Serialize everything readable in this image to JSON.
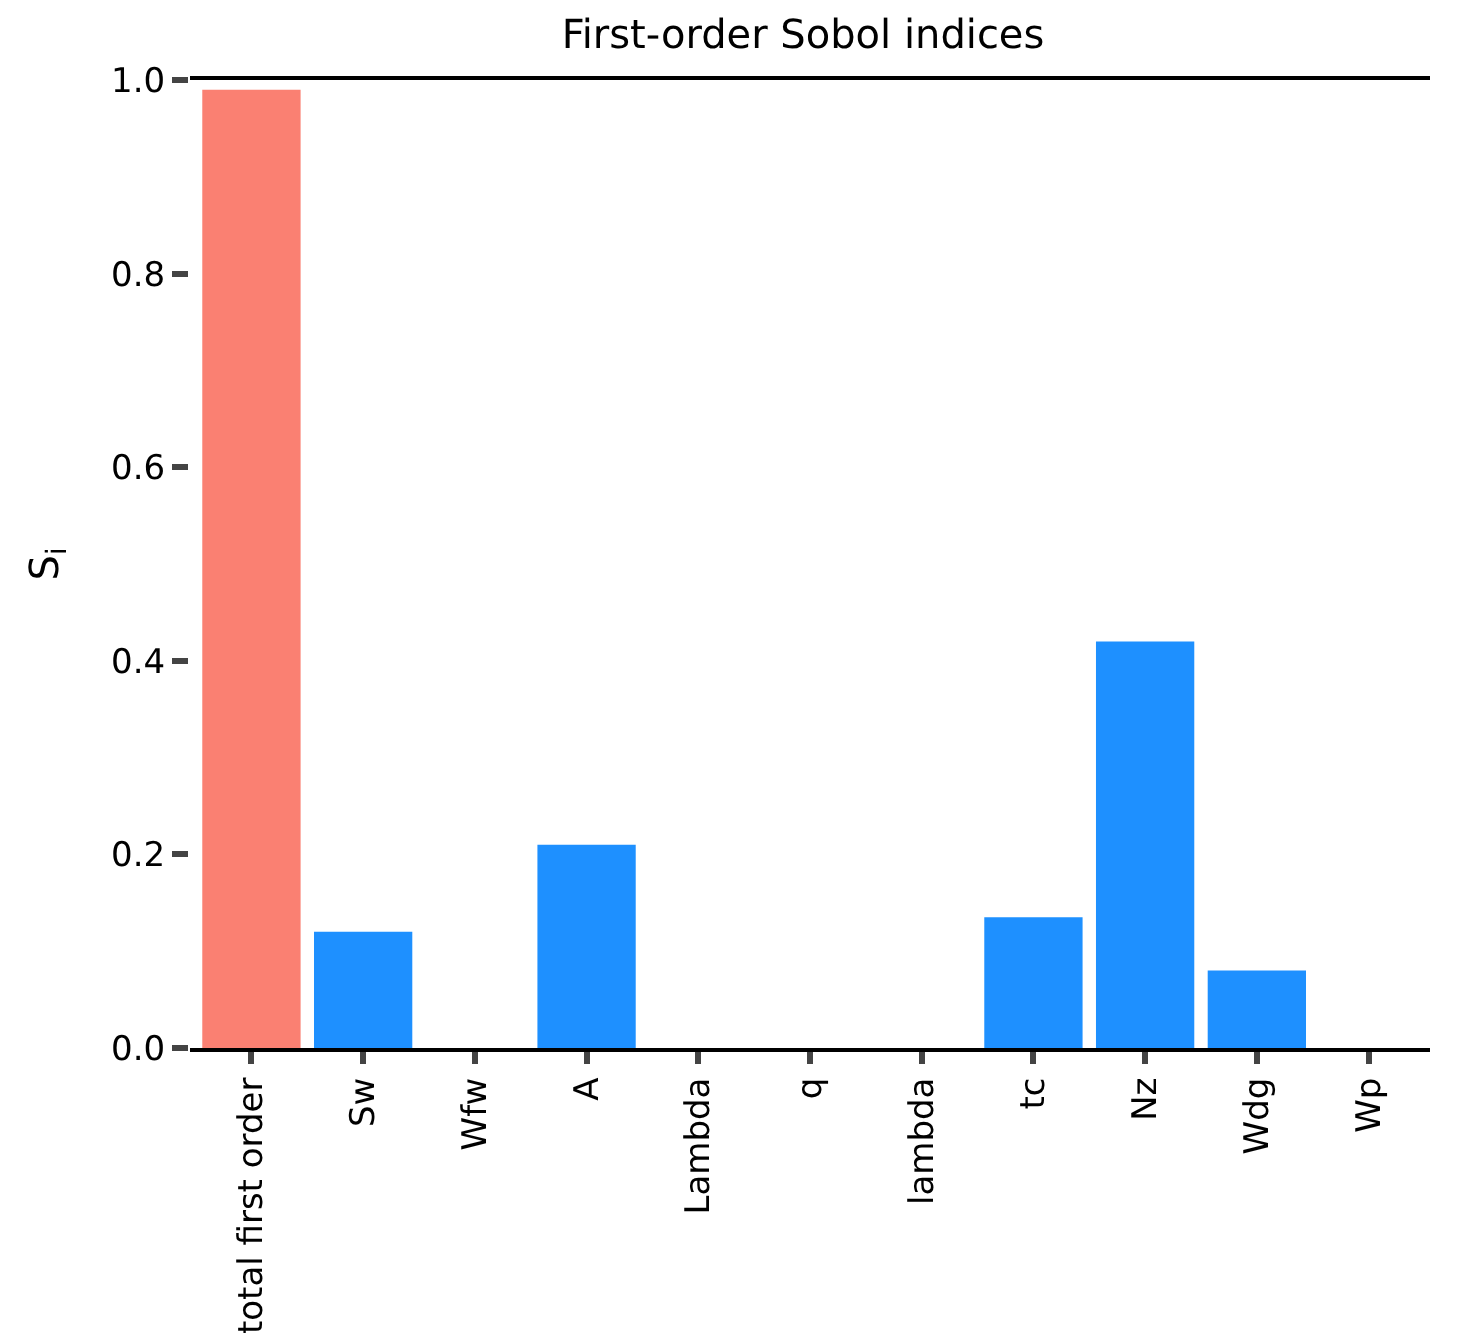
{
  "chart_data": {
    "type": "bar",
    "title": "First-order Sobol indices",
    "ylabel": "S$_{i}$",
    "categories": [
      "total first order",
      "Sw",
      "Wfw",
      "A",
      "Lambda",
      "q",
      "lambda",
      "tc",
      "Nz",
      "Wdg",
      "Wp"
    ],
    "values": [
      0.99,
      0.12,
      0,
      0.21,
      0,
      0,
      0,
      0.135,
      0.42,
      0.08,
      0
    ],
    "colors": [
      "#fa8072",
      "#1e90ff",
      "#1e90ff",
      "#1e90ff",
      "#1e90ff",
      "#1e90ff",
      "#1e90ff",
      "#1e90ff",
      "#1e90ff",
      "#1e90ff",
      "#1e90ff"
    ],
    "ylim": [
      0,
      1.0
    ],
    "yticks": [
      {
        "value": 0,
        "label": "0.0"
      },
      {
        "value": 0.2,
        "label": "0.2"
      },
      {
        "value": 0.4,
        "label": "0.4"
      },
      {
        "value": 0.6,
        "label": "0.6"
      },
      {
        "value": 0.8,
        "label": "0.8"
      },
      {
        "value": 1.0,
        "label": "1.0"
      }
    ]
  }
}
